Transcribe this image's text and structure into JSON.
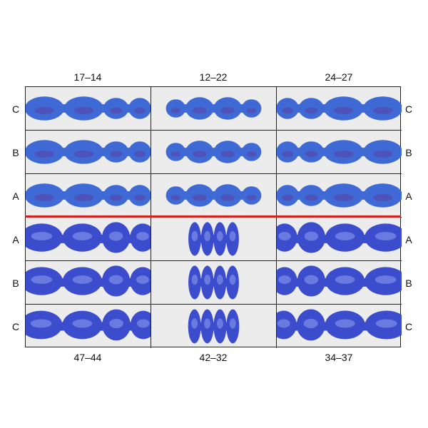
{
  "columns_top": [
    "17–14",
    "12–22",
    "24–27"
  ],
  "columns_bottom": [
    "47–44",
    "42–32",
    "34–37"
  ],
  "rows": [
    "C",
    "B",
    "A",
    "A",
    "B",
    "C"
  ],
  "colors": {
    "upper_wax": "#3f6ad6",
    "lower_wax": "#3b4ccc",
    "divider": "#d2221e",
    "cell_bg": "#ececec"
  }
}
